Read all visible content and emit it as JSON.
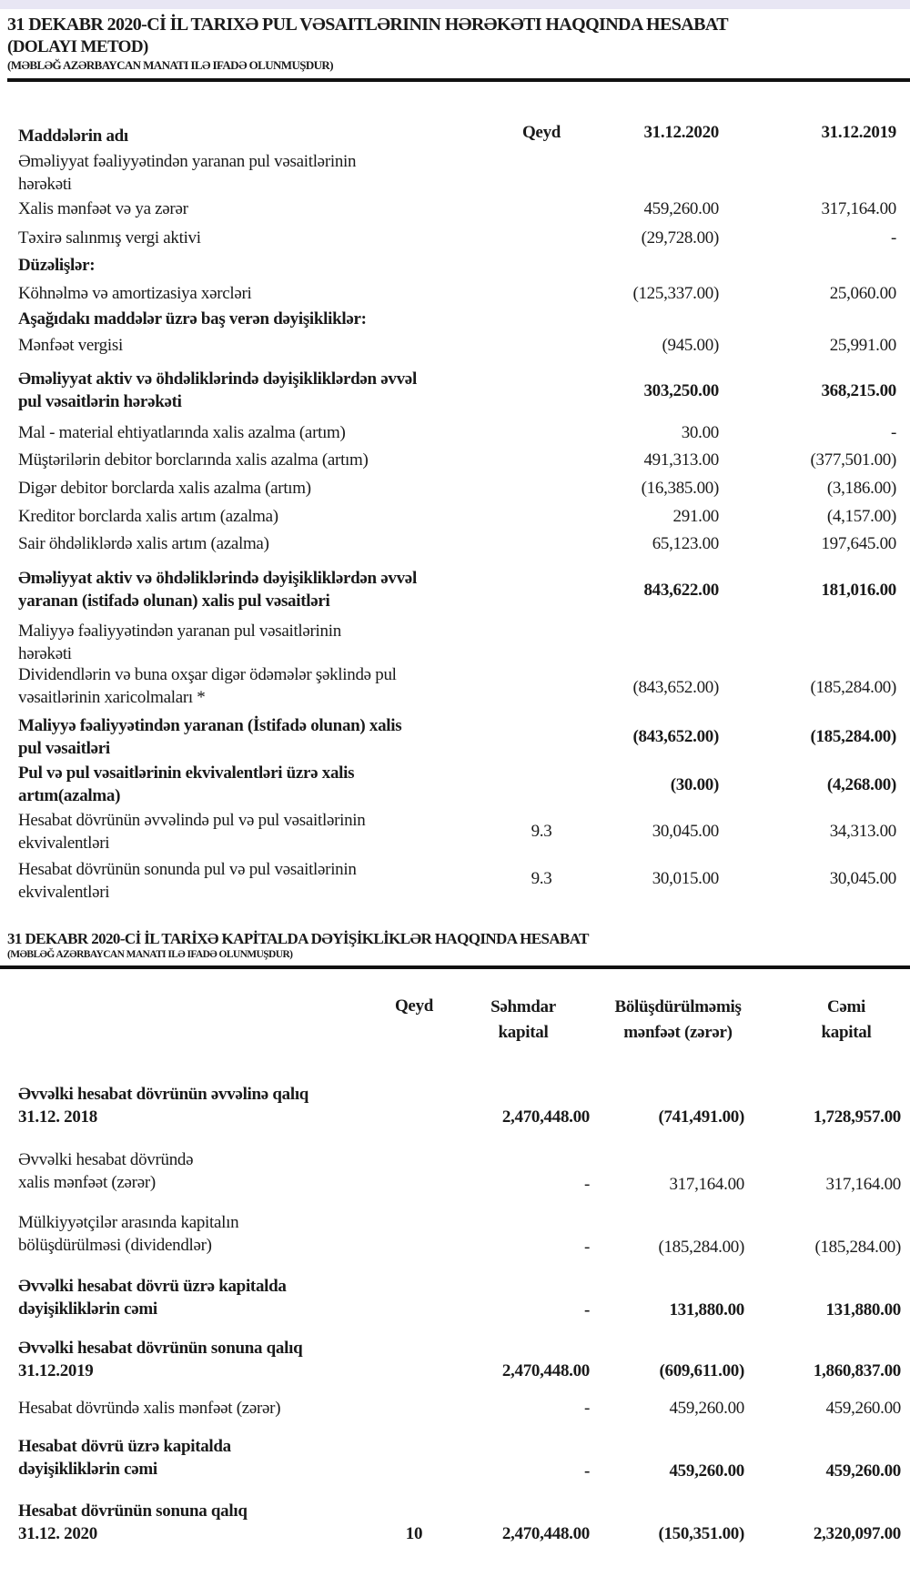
{
  "cash_flow": {
    "title": "31 DEKABR 2020-Cİ İL TARIXƏ PUL VƏSAITLƏRININ HƏRƏKƏTI HAQQINDA HESABAT",
    "subtitle": "(DOLAYI METOD)",
    "note": "(MƏBLƏĞ AZƏRBAYCAN MANATI ILƏ IFADƏ OLUNMUŞDUR)",
    "headers": {
      "item": "Maddələrin adı",
      "note": "Qeyd",
      "y2020": "31.12.2020",
      "y2019": "31.12.2019"
    },
    "rows": [
      {
        "label": [
          "Əməliyyat fəaliyyətindən yaranan pul vəsaitlərinin",
          "hərəkəti"
        ],
        "note": "",
        "v2020": "",
        "v2019": "",
        "bold": false
      },
      {
        "label": [
          "Xalis mənfəət və ya zərər"
        ],
        "note": "",
        "v2020": "459,260.00",
        "v2019": "317,164.00",
        "bold": false
      },
      {
        "label": [
          "Təxirə salınmış vergi aktivi"
        ],
        "note": "",
        "v2020": "(29,728.00)",
        "v2019": "-",
        "bold": false
      },
      {
        "label": [
          "Düzəlişlər:"
        ],
        "note": "",
        "v2020": "",
        "v2019": "",
        "bold": true
      },
      {
        "label": [
          "Köhnəlmə və amortizasiya xərcləri"
        ],
        "note": "",
        "v2020": "(125,337.00)",
        "v2019": "25,060.00",
        "bold": false
      },
      {
        "label": [
          "Aşağıdakı maddələr üzrə baş verən dəyişikliklər:"
        ],
        "note": "",
        "v2020": "",
        "v2019": "",
        "bold": true
      },
      {
        "label": [
          "Mənfəət vergisi"
        ],
        "note": "",
        "v2020": "(945.00)",
        "v2019": "25,991.00",
        "bold": false
      },
      {
        "label": [
          "Əməliyyat aktiv və öhdəliklərində dəyişikliklərdən əvvəl",
          "pul vəsaitlərin hərəkəti"
        ],
        "note": "",
        "v2020": "303,250.00",
        "v2019": "368,215.00",
        "bold": true
      },
      {
        "label": [
          "Mal - material ehtiyatlarında xalis azalma (artım)"
        ],
        "note": "",
        "v2020": "30.00",
        "v2019": "-",
        "bold": false
      },
      {
        "label": [
          "Müştərilərin debitor borclarında xalis azalma (artım)"
        ],
        "note": "",
        "v2020": "491,313.00",
        "v2019": "(377,501.00)",
        "bold": false
      },
      {
        "label": [
          "Digər debitor borclarda xalis azalma (artım)"
        ],
        "note": "",
        "v2020": "(16,385.00)",
        "v2019": "(3,186.00)",
        "bold": false
      },
      {
        "label": [
          "Kreditor borclarda xalis artım (azalma)"
        ],
        "note": "",
        "v2020": "291.00",
        "v2019": "(4,157.00)",
        "bold": false
      },
      {
        "label": [
          "Sair öhdəliklərdə xalis artım (azalma)"
        ],
        "note": "",
        "v2020": "65,123.00",
        "v2019": "197,645.00",
        "bold": false
      },
      {
        "label": [
          "Əməliyyat aktiv və öhdəliklərində dəyişikliklərdən əvvəl",
          "yaranan (istifadə olunan) xalis pul vəsaitləri"
        ],
        "note": "",
        "v2020": "843,622.00",
        "v2019": "181,016.00",
        "bold": true
      },
      {
        "label": [
          "Maliyyə fəaliyyətindən yaranan pul vəsaitlərinin",
          "hərəkəti"
        ],
        "note": "",
        "v2020": "",
        "v2019": "",
        "bold": false
      },
      {
        "label": [
          "Dividendlərin və buna oxşar digər ödəmələr şəklində pul",
          "vəsaitlərinin xaricolmaları *"
        ],
        "note": "",
        "v2020": "(843,652.00)",
        "v2019": "(185,284.00)",
        "bold": false
      },
      {
        "label": [
          "Maliyyə fəaliyyətindən yaranan (İstifadə olunan) xalis",
          "pul vəsaitləri"
        ],
        "note": "",
        "v2020": "(843,652.00)",
        "v2019": "(185,284.00)",
        "bold": true
      },
      {
        "label": [
          "Pul və pul vəsaitlərinin ekvivalentləri üzrə xalis",
          "artım(azalma)"
        ],
        "note": "",
        "v2020": "(30.00)",
        "v2019": "(4,268.00)",
        "bold": true
      },
      {
        "label": [
          "Hesabat dövrünün əvvəlində pul və pul vəsaitlərinin",
          "ekvivalentləri"
        ],
        "note": "9.3",
        "v2020": "30,045.00",
        "v2019": "34,313.00",
        "bold": false
      },
      {
        "label": [
          "Hesabat dövrünün sonunda pul və pul vəsaitlərinin",
          "ekvivalentləri"
        ],
        "note": "9.3",
        "v2020": "30,015.00",
        "v2019": "30,045.00",
        "bold": false
      }
    ]
  },
  "equity": {
    "title": "31 DEKABR 2020-Cİ İL TARİXƏ KAPİTALDA DƏYİŞİKLİKLƏR HAQQINDA HESABAT",
    "note": "(MƏBLƏĞ AZƏRBAYCAN MANATI ILƏ  IFADƏ OLUNMUŞDUR)",
    "headers": {
      "note": "Qeyd",
      "share": [
        "Səhmdar",
        "kapital"
      ],
      "retained": [
        "Bölüşdürülməmiş",
        "mənfəət (zərər)"
      ],
      "total": [
        "Cəmi",
        "kapital"
      ]
    },
    "rows": [
      {
        "label": [
          "Əvvəlki hesabat dövrünün əvvəlinə qalıq",
          "31.12. 2018"
        ],
        "note": "",
        "share": "2,470,448.00",
        "retained": "(741,491.00)",
        "total": "1,728,957.00",
        "bold": true
      },
      {
        "label": [
          "Əvvəlki hesabat dövründə",
          "xalis mənfəət (zərər)"
        ],
        "note": "",
        "share": "-",
        "retained": "317,164.00",
        "total": "317,164.00",
        "bold": false
      },
      {
        "label": [
          "Mülkiyyətçilər arasında kapitalın",
          "bölüşdürülməsi (dividendlər)"
        ],
        "note": "",
        "share": "-",
        "retained": "(185,284.00)",
        "total": "(185,284.00)",
        "bold": false
      },
      {
        "label": [
          "Əvvəlki hesabat dövrü üzrə kapitalda",
          "dəyişikliklərin cəmi"
        ],
        "note": "",
        "share": "-",
        "retained": "131,880.00",
        "total": "131,880.00",
        "bold": true
      },
      {
        "label": [
          "Əvvəlki hesabat dövrünün sonuna qalıq",
          "31.12.2019"
        ],
        "note": "",
        "share": "2,470,448.00",
        "retained": "(609,611.00)",
        "total": "1,860,837.00",
        "bold": true
      },
      {
        "label": [
          "Hesabat dövründə xalis mənfəət (zərər)"
        ],
        "note": "",
        "share": "-",
        "retained": "459,260.00",
        "total": "459,260.00",
        "bold": false
      },
      {
        "label": [
          "Hesabat dövrü üzrə kapitalda",
          "dəyişikliklərin cəmi"
        ],
        "note": "",
        "share": "-",
        "retained": "459,260.00",
        "total": "459,260.00",
        "bold": true
      },
      {
        "label": [
          "Hesabat dövrünün sonuna qalıq",
          "31.12. 2020"
        ],
        "note": "10",
        "share": "2,470,448.00",
        "retained": "(150,351.00)",
        "total": "2,320,097.00",
        "bold": true
      }
    ]
  }
}
